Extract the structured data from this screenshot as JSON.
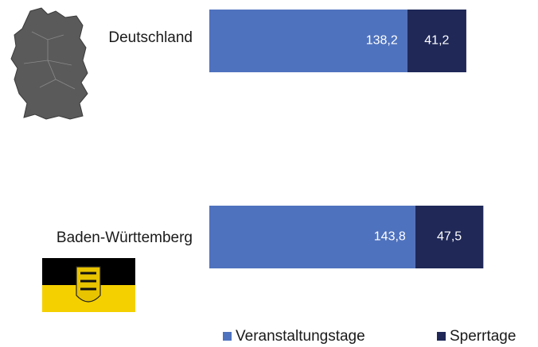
{
  "chart_data": {
    "type": "bar",
    "orientation": "horizontal",
    "stacked": true,
    "categories": [
      "Deutschland",
      "Baden-Württemberg"
    ],
    "series": [
      {
        "name": "Veranstaltungstage",
        "color": "#4f72be",
        "values": [
          138.2,
          143.8
        ],
        "value_labels": [
          "138,2",
          "143,8"
        ]
      },
      {
        "name": "Sperrtage",
        "color": "#1f2857",
        "values": [
          41.2,
          47.5
        ],
        "value_labels": [
          "41,2",
          "47,5"
        ]
      }
    ]
  }
}
